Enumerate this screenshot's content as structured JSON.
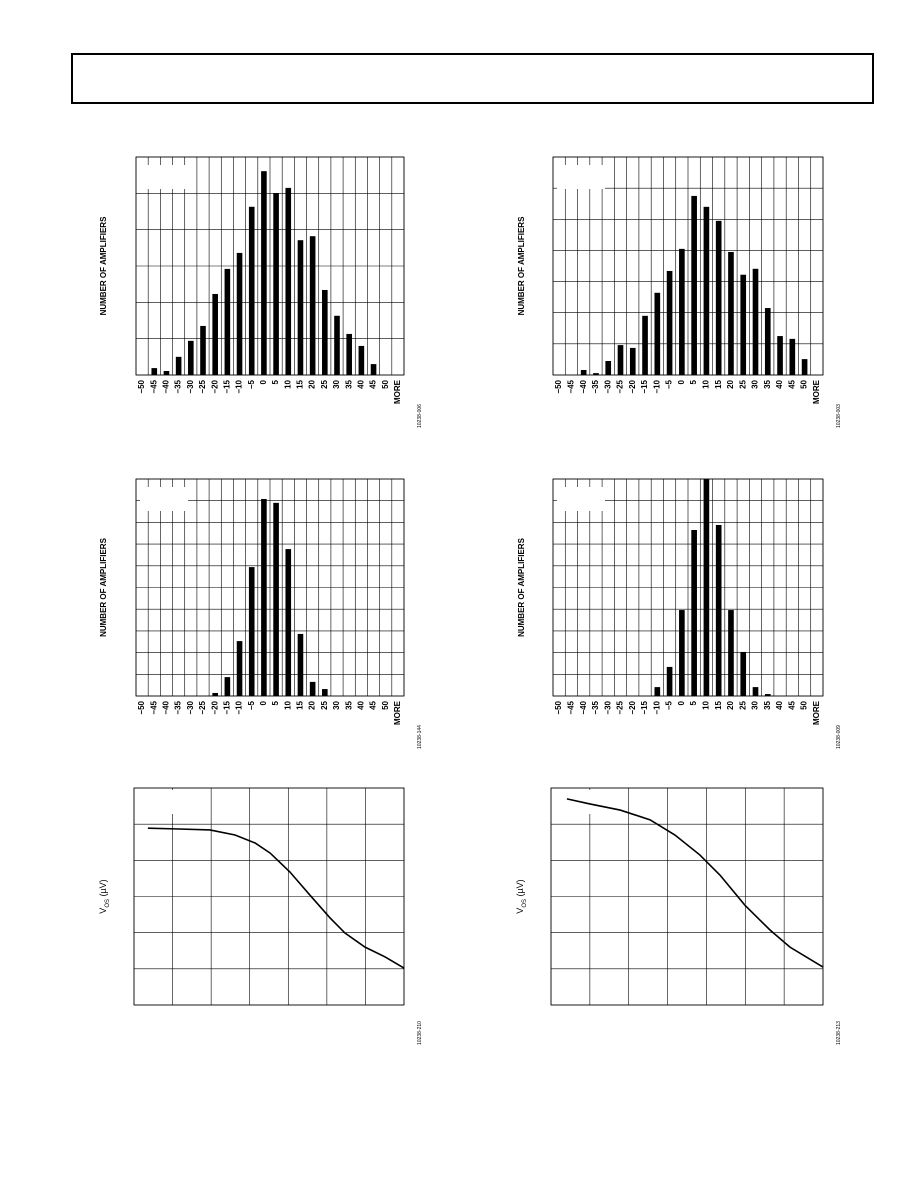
{
  "chart_data": [
    {
      "type": "bar",
      "ylabel": "NUMBER OF AMPLIFIERS",
      "figure_id": "10238-006",
      "color": "#000000",
      "categories": [
        "−50",
        "−45",
        "−40",
        "−35",
        "−30",
        "−25",
        "−20",
        "−15",
        "−10",
        "−5",
        "0",
        "5",
        "10",
        "15",
        "20",
        "25",
        "30",
        "35",
        "40",
        "45",
        "50",
        "MORE"
      ],
      "values": [
        0,
        0.19,
        0.11,
        0.5,
        0.94,
        1.35,
        2.23,
        2.92,
        3.36,
        4.63,
        5.61,
        5.0,
        5.15,
        3.71,
        3.82,
        2.34,
        1.63,
        1.13,
        0.8,
        0.3,
        0,
        0
      ],
      "ylim": [
        0,
        6
      ],
      "ygrid": [
        0,
        1,
        2,
        3,
        4,
        5,
        6
      ]
    },
    {
      "type": "bar",
      "ylabel": "NUMBER OF AMPLIFIERS",
      "figure_id": "10238-003",
      "color": "#000000",
      "categories": [
        "−50",
        "−45",
        "−40",
        "−35",
        "−30",
        "−25",
        "−20",
        "−15",
        "−10",
        "−5",
        "0",
        "5",
        "10",
        "15",
        "20",
        "25",
        "30",
        "35",
        "40",
        "45",
        "50",
        "MORE"
      ],
      "values": [
        0,
        0,
        0.16,
        0.06,
        0.45,
        0.96,
        0.87,
        1.9,
        2.64,
        3.34,
        4.05,
        5.75,
        5.4,
        4.95,
        3.95,
        3.22,
        3.41,
        2.15,
        1.25,
        1.16,
        0.51,
        0
      ],
      "ylim": [
        0,
        7
      ],
      "ygrid": [
        0,
        1,
        2,
        3,
        4,
        5,
        6,
        7
      ]
    },
    {
      "type": "bar",
      "ylabel": "NUMBER OF AMPLIFIERS",
      "figure_id": "10238-144",
      "color": "#000000",
      "categories": [
        "−50",
        "−45",
        "−40",
        "−35",
        "−30",
        "−25",
        "−20",
        "−15",
        "−10",
        "−5",
        "0",
        "5",
        "10",
        "15",
        "20",
        "25",
        "30",
        "35",
        "40",
        "45",
        "50",
        "MORE"
      ],
      "values": [
        0,
        0,
        0,
        0,
        0,
        0,
        0.14,
        0.87,
        2.53,
        5.94,
        9.08,
        8.9,
        6.77,
        2.86,
        0.65,
        0.32,
        0,
        0,
        0,
        0,
        0,
        0
      ],
      "ylim": [
        0,
        10
      ],
      "ygrid": [
        0,
        1,
        2,
        3,
        4,
        5,
        6,
        7,
        8,
        9,
        10
      ]
    },
    {
      "type": "bar",
      "ylabel": "NUMBER OF AMPLIFIERS",
      "figure_id": "10238-009",
      "color": "#000000",
      "categories": [
        "−50",
        "−45",
        "−40",
        "−35",
        "−30",
        "−25",
        "−20",
        "−15",
        "−10",
        "−5",
        "0",
        "5",
        "10",
        "15",
        "20",
        "25",
        "30",
        "35",
        "40",
        "45",
        "50",
        "MORE"
      ],
      "values": [
        0,
        0,
        0,
        0,
        0,
        0,
        0,
        0,
        0.41,
        1.34,
        3.96,
        7.65,
        10.0,
        7.88,
        3.96,
        2.03,
        0.41,
        0.09,
        0,
        0,
        0,
        0
      ],
      "ylim": [
        0,
        10
      ],
      "ygrid": [
        0,
        1,
        2,
        3,
        4,
        5,
        6,
        7,
        8,
        9,
        10
      ]
    },
    {
      "type": "line",
      "ylabel": "V",
      "ylabel_sub": "OS",
      "ylabel_unit": " (µV)",
      "figure_id": "10238-210",
      "color": "#000000",
      "x": [
        0.36,
        1.06,
        1.97,
        2.62,
        3.14,
        3.53,
        4.04,
        4.56,
        5.08,
        5.47,
        5.99,
        6.51,
        7.0
      ],
      "values": [
        4.89,
        4.87,
        4.84,
        4.7,
        4.48,
        4.2,
        3.68,
        3.04,
        2.41,
        1.99,
        1.6,
        1.33,
        1.02
      ],
      "xlim": [
        0,
        7
      ],
      "ylim": [
        0,
        6
      ],
      "xgrid": [
        0,
        1,
        2,
        3,
        4,
        5,
        6,
        7
      ],
      "ygrid": [
        0,
        1,
        2,
        3,
        4,
        5,
        6
      ]
    },
    {
      "type": "line",
      "ylabel": "V",
      "ylabel_sub": "OS",
      "ylabel_unit": " (µV)",
      "figure_id": "10238-213",
      "color": "#000000",
      "x": [
        0.41,
        1.0,
        1.78,
        2.55,
        3.19,
        3.83,
        4.35,
        4.99,
        5.64,
        6.15,
        7.0
      ],
      "values": [
        5.7,
        5.56,
        5.39,
        5.12,
        4.7,
        4.15,
        3.59,
        2.76,
        2.07,
        1.6,
        1.05
      ],
      "xlim": [
        0,
        7
      ],
      "ylim": [
        0,
        6
      ],
      "xgrid": [
        0,
        1,
        2,
        3,
        4,
        5,
        6,
        7
      ],
      "ygrid": [
        0,
        1,
        2,
        3,
        4,
        5,
        6
      ]
    }
  ]
}
